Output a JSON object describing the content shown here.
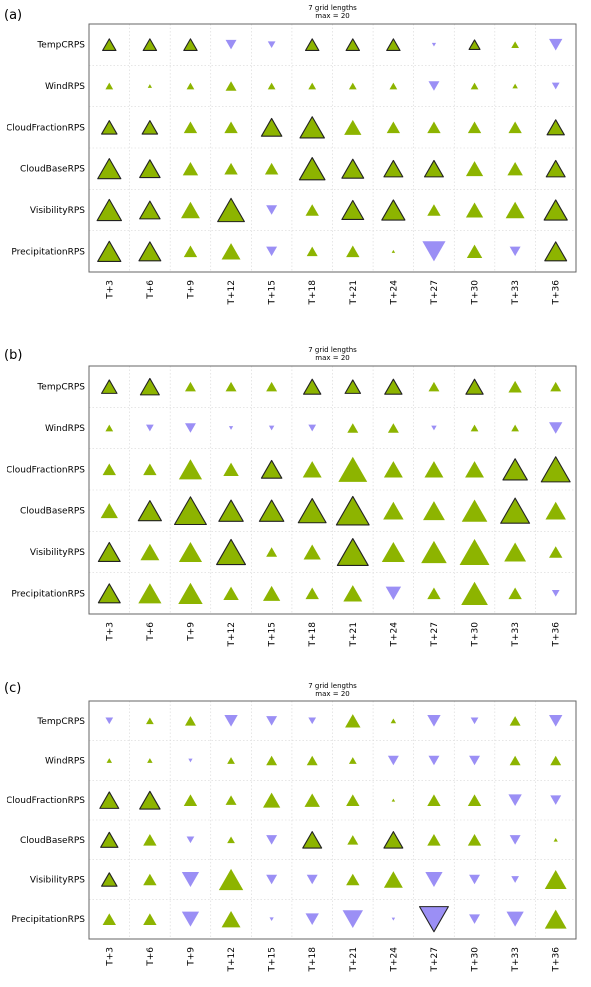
{
  "chart_data": [
    {
      "type": "scatter",
      "panel_label": "(a)",
      "title_lines": [
        "7 grid lengths",
        "max = 20"
      ],
      "rows": [
        "TempCRPS",
        "WindRPS",
        "CloudFractionRPS",
        "CloudBaseRPS",
        "VisibilityRPS",
        "PrecipitationRPS"
      ],
      "columns": [
        "T+3",
        "T+6",
        "T+9",
        "T+12",
        "T+15",
        "T+18",
        "T+21",
        "T+24",
        "T+27",
        "T+30",
        "T+33",
        "T+36"
      ],
      "grid": true,
      "colors": {
        "positive": "#8db400",
        "negative": "#9b8ff5",
        "significant_outline": "#222222"
      },
      "values": [
        [
          3,
          3,
          3,
          -2,
          -1,
          3,
          3,
          3,
          -0.3,
          2,
          1,
          -3
        ],
        [
          1,
          0.3,
          1,
          2,
          1,
          1,
          1,
          1,
          -2,
          1,
          0.5,
          -1
        ],
        [
          4,
          4,
          3,
          3,
          7,
          10,
          5,
          3,
          3,
          3,
          3,
          5
        ],
        [
          9,
          7,
          4,
          3,
          3,
          11,
          8,
          6,
          6,
          5,
          4,
          6
        ],
        [
          10,
          7,
          6,
          12,
          -2,
          3,
          8,
          9,
          3,
          5,
          6,
          9
        ],
        [
          9,
          8,
          3,
          6,
          -2,
          2,
          3,
          0.2,
          -9,
          4,
          -2,
          8
        ]
      ],
      "significant": [
        [
          1,
          1,
          1,
          0,
          0,
          1,
          1,
          1,
          0,
          1,
          0,
          0
        ],
        [
          0,
          0,
          0,
          0,
          0,
          0,
          0,
          0,
          0,
          0,
          0,
          0
        ],
        [
          1,
          1,
          0,
          0,
          1,
          1,
          0,
          0,
          0,
          0,
          0,
          1
        ],
        [
          1,
          1,
          0,
          0,
          0,
          1,
          1,
          1,
          1,
          0,
          0,
          1
        ],
        [
          1,
          1,
          0,
          1,
          0,
          0,
          1,
          1,
          0,
          0,
          0,
          1
        ],
        [
          1,
          1,
          0,
          0,
          0,
          0,
          0,
          0,
          0,
          0,
          0,
          1
        ]
      ]
    },
    {
      "type": "scatter",
      "panel_label": "(b)",
      "title_lines": [
        "7 grid lengths",
        "max = 20"
      ],
      "rows": [
        "TempCRPS",
        "WindRPS",
        "CloudFractionRPS",
        "CloudBaseRPS",
        "VisibilityRPS",
        "PrecipitationRPS"
      ],
      "columns": [
        "T+3",
        "T+6",
        "T+9",
        "T+12",
        "T+15",
        "T+18",
        "T+21",
        "T+24",
        "T+27",
        "T+30",
        "T+33",
        "T+36"
      ],
      "grid": true,
      "colors": {
        "positive": "#8db400",
        "negative": "#9b8ff5",
        "significant_outline": "#222222"
      },
      "values": [
        [
          4,
          6,
          2,
          2,
          2,
          5,
          4,
          5,
          2,
          5,
          3,
          2
        ],
        [
          1,
          -1,
          -2,
          -0.3,
          -0.5,
          -1,
          2,
          2,
          -0.5,
          1,
          1,
          -3
        ],
        [
          3,
          3,
          9,
          4,
          7,
          6,
          14,
          6,
          6,
          6,
          10,
          14
        ],
        [
          5,
          9,
          17,
          10,
          10,
          13,
          18,
          7,
          8,
          11,
          14,
          7
        ],
        [
          8,
          6,
          9,
          14,
          2,
          5,
          16,
          9,
          11,
          15,
          8,
          3
        ],
        [
          8,
          9,
          10,
          4,
          5,
          3,
          6,
          -4,
          3,
          12,
          3,
          -1
        ]
      ],
      "significant": [
        [
          1,
          1,
          0,
          0,
          0,
          1,
          1,
          1,
          0,
          1,
          0,
          0
        ],
        [
          0,
          0,
          0,
          0,
          0,
          0,
          0,
          0,
          0,
          0,
          0,
          0
        ],
        [
          0,
          0,
          0,
          0,
          1,
          0,
          0,
          0,
          0,
          0,
          1,
          1
        ],
        [
          0,
          1,
          1,
          1,
          1,
          1,
          1,
          0,
          0,
          0,
          1,
          0
        ],
        [
          1,
          0,
          0,
          1,
          0,
          0,
          1,
          0,
          0,
          0,
          0,
          0
        ],
        [
          1,
          0,
          0,
          0,
          0,
          0,
          0,
          0,
          0,
          0,
          0,
          0
        ]
      ]
    },
    {
      "type": "scatter",
      "panel_label": "(c)",
      "title_lines": [
        "7 grid lengths",
        "max = 20"
      ],
      "rows": [
        "TempCRPS",
        "WindRPS",
        "CloudFractionRPS",
        "CloudBaseRPS",
        "VisibilityRPS",
        "PrecipitationRPS"
      ],
      "columns": [
        "T+3",
        "T+6",
        "T+9",
        "T+12",
        "T+15",
        "T+18",
        "T+21",
        "T+24",
        "T+27",
        "T+30",
        "T+33",
        "T+36"
      ],
      "grid": true,
      "colors": {
        "positive": "#8db400",
        "negative": "#9b8ff5",
        "significant_outline": "#222222"
      },
      "values": [
        [
          -1,
          1,
          2,
          -3,
          -2,
          -1,
          4,
          0.5,
          -3,
          -1,
          2,
          -3
        ],
        [
          0.5,
          0.5,
          -0.3,
          1,
          2,
          2,
          1,
          -2,
          -2,
          -2,
          2,
          2
        ],
        [
          6,
          7,
          3,
          2,
          5,
          4,
          3,
          0.2,
          3,
          3,
          -3,
          -2
        ],
        [
          5,
          3,
          -1,
          1,
          -2,
          6,
          2,
          6,
          3,
          3,
          -2,
          0.3
        ],
        [
          4,
          3,
          -5,
          10,
          -2,
          -2,
          3,
          6,
          -5,
          -2,
          -1,
          8
        ],
        [
          3,
          3,
          -5,
          6,
          -0.3,
          -3,
          -7,
          -0.2,
          -14,
          -2,
          -5,
          8
        ]
      ],
      "significant": [
        [
          0,
          0,
          0,
          0,
          0,
          0,
          0,
          0,
          0,
          0,
          0,
          0
        ],
        [
          0,
          0,
          0,
          0,
          0,
          0,
          0,
          0,
          0,
          0,
          0,
          0
        ],
        [
          1,
          1,
          0,
          0,
          0,
          0,
          0,
          0,
          0,
          0,
          0,
          0
        ],
        [
          1,
          0,
          0,
          0,
          0,
          1,
          0,
          1,
          0,
          0,
          0,
          0
        ],
        [
          1,
          0,
          0,
          0,
          0,
          0,
          0,
          0,
          0,
          0,
          0,
          0
        ],
        [
          0,
          0,
          0,
          0,
          0,
          0,
          0,
          0,
          1,
          0,
          0,
          0
        ]
      ]
    }
  ]
}
